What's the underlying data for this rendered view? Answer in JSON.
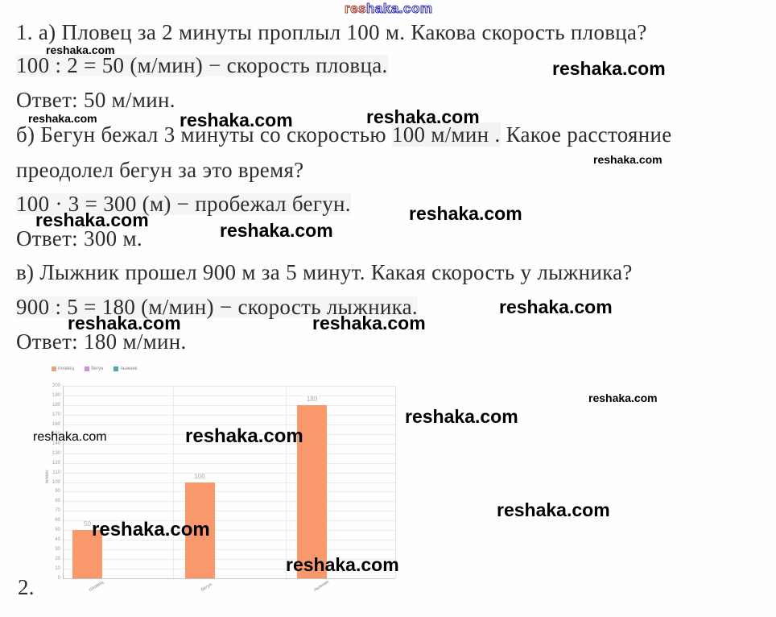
{
  "watermark": {
    "text": "reshaka.com",
    "outline_part1": "res",
    "outline_part2": "haka.com"
  },
  "solution": {
    "part_a": {
      "question": "1. а) Пловец за 2 минуты проплыл 100 м. Какова скорость пловца?",
      "equation": "100 : 2 = 50 (м/мин) − скорость пловца.",
      "answer": "Ответ: 50 м/мин."
    },
    "part_b": {
      "question_pre": "б) Бегун бежал 3 минуты со скоростью ",
      "question_math": "100 м/мин .",
      "question_post": " Какое расстояние",
      "question_line2": "преодолел бегун за это время?",
      "equation": "100 · 3 = 300 (м) − пробежал бегун.",
      "answer": "Ответ: 300 м."
    },
    "part_v": {
      "question": "в) Лыжник прошел 900 м за 5 минут. Какая скорость у лыжника?",
      "equation": "900 : 5 = 180 (м/мин) − скорость лыжника.",
      "answer": "Ответ: 180 м/мин."
    },
    "next_item": "2."
  },
  "chart_data": {
    "type": "bar",
    "title": "",
    "categories": [
      "пловец",
      "бегун",
      "лыжник"
    ],
    "values": [
      50,
      100,
      180
    ],
    "bar_labels": [
      "50",
      "100",
      "180"
    ],
    "xlabel": "",
    "ylabel": "м/мин",
    "ylim": [
      0,
      200
    ],
    "ytick_step": 10,
    "grid": true,
    "legend_position": "top-left",
    "bar_color": "#f9996b",
    "legend": [
      {
        "label": "пловец",
        "color": "#e9a87c"
      },
      {
        "label": "бегун",
        "color": "#cf8fd4"
      },
      {
        "label": "лыжник",
        "color": "#53a3b3"
      }
    ]
  }
}
